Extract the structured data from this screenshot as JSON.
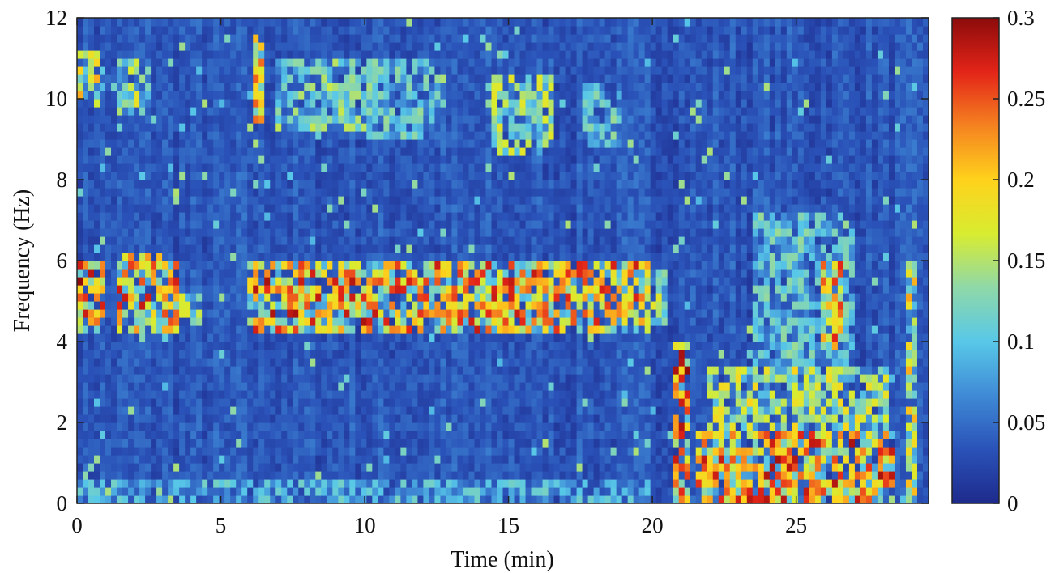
{
  "chart_data": {
    "type": "heatmap",
    "title": "",
    "xlabel": "Time (min)",
    "ylabel": "Frequency (Hz)",
    "xlim": [
      0,
      29.6
    ],
    "ylim": [
      0,
      12
    ],
    "x_ticks": [
      "0",
      "5",
      "10",
      "15",
      "20",
      "25"
    ],
    "x_tick_values": [
      0,
      5,
      10,
      15,
      20,
      25
    ],
    "y_ticks": [
      "0",
      "2",
      "4",
      "6",
      "8",
      "10",
      "12"
    ],
    "y_tick_values": [
      0,
      2,
      4,
      6,
      8,
      10,
      12
    ],
    "colorbar": {
      "range": [
        0,
        0.3
      ],
      "ticks": [
        "0",
        "0.05",
        "0.1",
        "0.15",
        "0.2",
        "0.25",
        "0.3"
      ],
      "tick_values": [
        0,
        0.05,
        0.1,
        0.15,
        0.2,
        0.25,
        0.3
      ],
      "colormap": [
        "#1e2a8c",
        "#2a52b8",
        "#3f8ad6",
        "#58c8e8",
        "#8fd8a8",
        "#d8ec30",
        "#ffd21c",
        "#f58220",
        "#e32418",
        "#8c0b0b"
      ]
    },
    "background_level": 0.035,
    "regions": [
      {
        "t": [
          0.0,
          1.0
        ],
        "f": [
          4.2,
          6.0
        ],
        "level": 0.3
      },
      {
        "t": [
          0.0,
          0.8
        ],
        "f": [
          9.8,
          11.2
        ],
        "level": 0.22
      },
      {
        "t": [
          1.4,
          3.6
        ],
        "f": [
          4.2,
          6.2
        ],
        "level": 0.28
      },
      {
        "t": [
          1.4,
          2.6
        ],
        "f": [
          9.6,
          11.0
        ],
        "level": 0.2
      },
      {
        "t": [
          3.6,
          4.4
        ],
        "f": [
          4.6,
          5.2
        ],
        "level": 0.18
      },
      {
        "t": [
          6.0,
          10.0
        ],
        "f": [
          4.3,
          6.0
        ],
        "level": 0.29
      },
      {
        "t": [
          6.2,
          6.6
        ],
        "f": [
          9.4,
          11.6
        ],
        "level": 0.26
      },
      {
        "t": [
          7.0,
          10.4
        ],
        "f": [
          9.2,
          11.0
        ],
        "level": 0.16
      },
      {
        "t": [
          10.0,
          20.0
        ],
        "f": [
          4.2,
          6.0
        ],
        "level": 0.28
      },
      {
        "t": [
          10.0,
          12.6
        ],
        "f": [
          9.0,
          11.0
        ],
        "level": 0.14
      },
      {
        "t": [
          14.4,
          16.6
        ],
        "f": [
          8.6,
          10.6
        ],
        "level": 0.18
      },
      {
        "t": [
          17.6,
          19.0
        ],
        "f": [
          8.8,
          10.4
        ],
        "level": 0.14
      },
      {
        "t": [
          20.0,
          20.6
        ],
        "f": [
          4.4,
          5.8
        ],
        "level": 0.18
      },
      {
        "t": [
          20.7,
          21.4
        ],
        "f": [
          0.0,
          4.0
        ],
        "level": 0.3
      },
      {
        "t": [
          21.5,
          28.4
        ],
        "f": [
          0.0,
          1.8
        ],
        "level": 0.29
      },
      {
        "t": [
          22.0,
          28.2
        ],
        "f": [
          1.8,
          3.4
        ],
        "level": 0.2
      },
      {
        "t": [
          23.4,
          27.0
        ],
        "f": [
          3.4,
          7.2
        ],
        "level": 0.14
      },
      {
        "t": [
          25.9,
          26.6
        ],
        "f": [
          3.8,
          6.0
        ],
        "level": 0.27
      },
      {
        "t": [
          28.8,
          29.3
        ],
        "f": [
          0.0,
          6.0
        ],
        "level": 0.22
      },
      {
        "t": [
          0.0,
          20.0
        ],
        "f": [
          0.0,
          0.6
        ],
        "level": 0.12
      }
    ]
  }
}
